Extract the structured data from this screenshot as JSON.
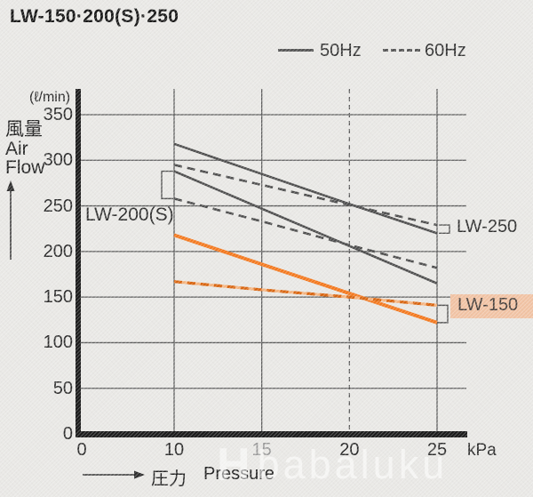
{
  "title": "LW-150·200(S)·250",
  "legend": {
    "items": [
      {
        "label": "50Hz",
        "style": "solid"
      },
      {
        "label": "60Hz",
        "style": "dashed"
      }
    ]
  },
  "y_axis": {
    "unit": "(ℓ/min)",
    "label_jp": "風量",
    "label_en_line1": "Air",
    "label_en_line2": "Flow",
    "ticks": [
      0,
      50,
      100,
      150,
      200,
      250,
      300,
      350
    ]
  },
  "x_axis": {
    "unit": "kPa",
    "label_jp": "圧力",
    "label_en": "Pressure",
    "ticks": [
      0,
      10,
      15,
      20,
      25
    ]
  },
  "labels": {
    "lw200": "LW-200(S)",
    "lw250": "LW-250",
    "lw150": "LW-150"
  },
  "watermark": {
    "logo": "H",
    "text": "babaluku"
  },
  "colors": {
    "dark_line": "#4d4d4d",
    "grid": "#5c5c5c",
    "axis": "#1c1c1c",
    "orange": "#f4791f",
    "orange_dash": "#d96510",
    "orange_underlay": "#f5b37d",
    "lw150_highlight": "#f1c3a4"
  },
  "chart_data": {
    "type": "line",
    "title": "LW-150·200(S)·250",
    "xlabel": "圧力 Pressure (kPa)",
    "ylabel": "風量 Air Flow (ℓ/min)",
    "x": [
      10,
      15,
      20,
      25
    ],
    "xlim": [
      0,
      27
    ],
    "ylim": [
      0,
      350
    ],
    "grid": true,
    "legend_position": "top",
    "series": [
      {
        "name": "LW-250 50Hz",
        "style": "solid",
        "color": "#4d4d4d",
        "stroke_width": 2.6,
        "values": [
          318,
          285,
          252,
          220
        ]
      },
      {
        "name": "LW-250 60Hz",
        "style": "dashed",
        "color": "#4d4d4d",
        "stroke_width": 2.6,
        "values": [
          295,
          273,
          251,
          229
        ]
      },
      {
        "name": "LW-200(S) 50Hz",
        "style": "solid",
        "color": "#4d4d4d",
        "stroke_width": 2.6,
        "values": [
          288,
          247,
          206,
          165
        ]
      },
      {
        "name": "LW-200(S) 60Hz",
        "style": "dashed",
        "color": "#4d4d4d",
        "stroke_width": 2.6,
        "values": [
          258,
          233,
          207,
          182
        ]
      },
      {
        "name": "LW-150 50Hz",
        "style": "solid",
        "color": "#f4791f",
        "stroke_width": 4,
        "values": [
          218,
          186,
          154,
          122
        ]
      },
      {
        "name": "LW-150 60Hz",
        "style": "dashed",
        "color": "#d96510",
        "underlay": "#f5b37d",
        "stroke_width": 3.2,
        "values": [
          167,
          158,
          150,
          141
        ]
      }
    ],
    "annotations": [
      {
        "text": "LW-200(S)",
        "anchor": "start of LW-200(S) curves at 10 kPa"
      },
      {
        "text": "LW-250",
        "anchor": "end of LW-250 curves at 25 kPa"
      },
      {
        "text": "LW-150",
        "anchor": "end of LW-150 curves at 25 kPa",
        "highlighted": true
      }
    ]
  }
}
